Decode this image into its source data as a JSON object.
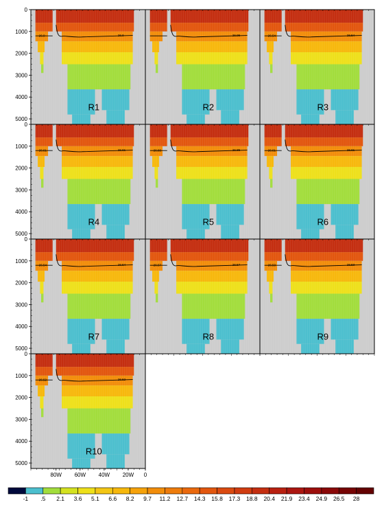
{
  "chart_data": {
    "type": "heatmap",
    "title": "",
    "y_ticks": [
      "0",
      "1000",
      "2000",
      "3000",
      "4000",
      "5000"
    ],
    "y_range": [
      0,
      5250
    ],
    "x_ticks": [
      "80W",
      "60W",
      "40W",
      "20W",
      "0"
    ],
    "x_range_lon": [
      -100,
      0
    ],
    "panels": [
      {
        "label": "R1",
        "contour_labels": [
          "26.9",
          "26.9"
        ]
      },
      {
        "label": "R2",
        "contour_labels": [
          "",
          "26.95"
        ]
      },
      {
        "label": "R3",
        "contour_labels": [
          "26.54",
          "26.54"
        ]
      },
      {
        "label": "R4",
        "contour_labels": [
          "26.61",
          "26.61"
        ]
      },
      {
        "label": "R5",
        "contour_labels": [
          "26.83",
          "26.85"
        ]
      },
      {
        "label": "R6",
        "contour_labels": [
          "26.61",
          "26.61"
        ]
      },
      {
        "label": "R7",
        "contour_labels": [
          "26.54",
          "26.54"
        ]
      },
      {
        "label": "R8",
        "contour_labels": [
          "26.57",
          "26.57"
        ]
      },
      {
        "label": "R9",
        "contour_labels": [
          "26.53",
          "26.53"
        ]
      },
      {
        "label": "R10",
        "contour_labels": [
          "26.52",
          "26.52"
        ]
      }
    ],
    "colorbar": {
      "labels": [
        "-1",
        ".5",
        "2.1",
        "3.6",
        "5.1",
        "6.6",
        "8.2",
        "9.7",
        "11.2",
        "12.7",
        "14.3",
        "15.8",
        "17.3",
        "18.8",
        "20.4",
        "21.9",
        "23.4",
        "24.9",
        "26.5",
        "28"
      ],
      "colors": [
        "#000a3c",
        "#4cbfce",
        "#a2dd3c",
        "#d4e220",
        "#eee01a",
        "#f3c614",
        "#f7b80c",
        "#f6a20a",
        "#f28d0a",
        "#ee7c0c",
        "#ea690d",
        "#e2560e",
        "#da4a10",
        "#d03c10",
        "#c42e10",
        "#b82010",
        "#ab1610",
        "#9c0e0c",
        "#8a0808",
        "#760404",
        "#640202"
      ]
    },
    "layers": [
      {
        "top": 0,
        "bottom": 600,
        "color": "#c42e10"
      },
      {
        "top": 600,
        "bottom": 1000,
        "color": "#e2560e"
      },
      {
        "top": 1000,
        "bottom": 1450,
        "color": "#f28d0a"
      },
      {
        "top": 1450,
        "bottom": 1950,
        "color": "#f7b80c"
      },
      {
        "top": 1950,
        "bottom": 2500,
        "color": "#eee01a"
      },
      {
        "top": 2500,
        "bottom": 3650,
        "color": "#a2dd3c"
      },
      {
        "top": 3650,
        "bottom": 5250,
        "color": "#4cbfce"
      }
    ],
    "land_color": "#cdcdcd",
    "contour_color": "#000000"
  }
}
